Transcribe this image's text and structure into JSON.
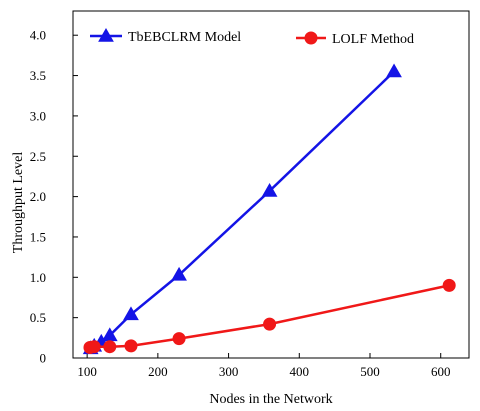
{
  "chart_data": {
    "type": "line",
    "title": "",
    "xlabel": "Nodes in the Network",
    "ylabel": "Throughput Level",
    "xlim": [
      80,
      640
    ],
    "ylim": [
      0,
      4.3
    ],
    "xticks": [
      100,
      200,
      300,
      400,
      500,
      600
    ],
    "xtick_labels": [
      "100",
      "200",
      "300",
      "400",
      "500",
      "600"
    ],
    "yticks": [
      0,
      0.5,
      1.0,
      1.5,
      2.0,
      2.5,
      3.0,
      3.5,
      4.0
    ],
    "ytick_labels": [
      "0",
      "0.5",
      "1.0",
      "1.5",
      "2.0",
      "2.5",
      "3.0",
      "3.5",
      "4.0"
    ],
    "grid": false,
    "legend_position": "top",
    "series": [
      {
        "name": "TbEBCLRM Model",
        "color": "#1414e6",
        "marker": "triangle",
        "x": [
          105,
          110,
          120,
          132,
          162,
          230,
          358,
          534
        ],
        "y": [
          0.12,
          0.15,
          0.2,
          0.28,
          0.54,
          1.03,
          2.07,
          3.55
        ]
      },
      {
        "name": "LOLF Method",
        "color": "#f01818",
        "marker": "circle",
        "x": [
          104,
          110,
          132,
          162,
          230,
          358,
          612
        ],
        "y": [
          0.13,
          0.14,
          0.14,
          0.15,
          0.24,
          0.42,
          0.9
        ]
      }
    ]
  }
}
